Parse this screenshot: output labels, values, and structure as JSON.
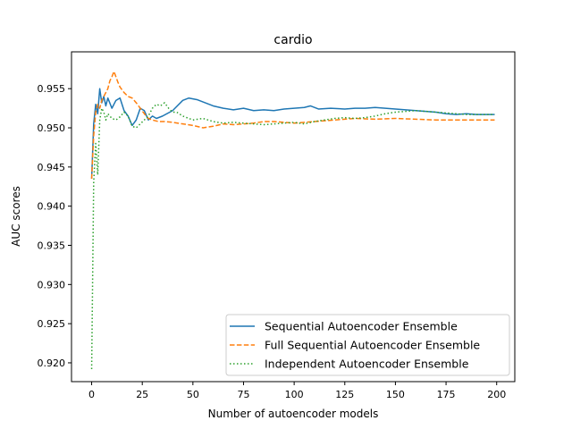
{
  "chart_data": {
    "type": "line",
    "title": "cardio",
    "xlabel": "Number of autoencoder models",
    "ylabel": "AUC scores",
    "xlim": [
      -9.95,
      208.95
    ],
    "ylim": [
      0.9176,
      0.9597
    ],
    "xticks": [
      0,
      25,
      50,
      75,
      100,
      125,
      150,
      175,
      200
    ],
    "xtick_labels": [
      "0",
      "25",
      "50",
      "75",
      "100",
      "125",
      "150",
      "175",
      "200"
    ],
    "yticks": [
      0.92,
      0.925,
      0.93,
      0.935,
      0.94,
      0.945,
      0.95,
      0.955
    ],
    "ytick_labels": [
      "0.920",
      "0.925",
      "0.930",
      "0.935",
      "0.940",
      "0.945",
      "0.950",
      "0.955"
    ],
    "grid": false,
    "legend_position": "lower-right",
    "series": [
      {
        "name": "Sequential Autoencoder Ensemble",
        "color": "#1f77b4",
        "dash": "solid",
        "x": [
          0,
          1,
          2,
          3,
          4,
          5,
          6,
          7,
          8,
          10,
          12,
          14,
          16,
          18,
          20,
          22,
          24,
          26,
          28,
          30,
          32,
          35,
          40,
          45,
          48,
          52,
          56,
          60,
          65,
          70,
          75,
          80,
          85,
          90,
          95,
          100,
          105,
          108,
          112,
          118,
          125,
          130,
          135,
          140,
          145,
          150,
          155,
          160,
          165,
          170,
          175,
          180,
          185,
          190,
          195,
          199
        ],
        "y": [
          0.9435,
          0.9505,
          0.953,
          0.9518,
          0.955,
          0.9532,
          0.954,
          0.9528,
          0.9538,
          0.9525,
          0.9535,
          0.9538,
          0.9522,
          0.9515,
          0.9503,
          0.951,
          0.9525,
          0.9522,
          0.951,
          0.9515,
          0.9512,
          0.9515,
          0.9522,
          0.9535,
          0.9538,
          0.9536,
          0.9532,
          0.9528,
          0.9525,
          0.9523,
          0.9525,
          0.9522,
          0.9523,
          0.9522,
          0.9524,
          0.9525,
          0.9526,
          0.9528,
          0.9524,
          0.9525,
          0.9524,
          0.9525,
          0.9525,
          0.9526,
          0.9525,
          0.9524,
          0.9523,
          0.9522,
          0.9521,
          0.952,
          0.9518,
          0.9517,
          0.9518,
          0.9517,
          0.9517,
          0.9517
        ]
      },
      {
        "name": "Full Sequential Autoencoder Ensemble",
        "color": "#ff7f0e",
        "dash": "dashed",
        "x": [
          0,
          1,
          2,
          3,
          4,
          5,
          6,
          7,
          8,
          9,
          10,
          11,
          12,
          13,
          14,
          16,
          18,
          20,
          22,
          24,
          26,
          28,
          30,
          33,
          36,
          40,
          45,
          50,
          55,
          60,
          65,
          70,
          75,
          80,
          85,
          90,
          95,
          100,
          110,
          120,
          130,
          140,
          150,
          160,
          170,
          180,
          190,
          199
        ],
        "y": [
          0.9435,
          0.949,
          0.952,
          0.953,
          0.9525,
          0.9535,
          0.954,
          0.9545,
          0.955,
          0.956,
          0.9565,
          0.9572,
          0.9565,
          0.9558,
          0.9552,
          0.9545,
          0.954,
          0.9538,
          0.9532,
          0.9525,
          0.9518,
          0.9512,
          0.951,
          0.9508,
          0.9508,
          0.9507,
          0.9505,
          0.9503,
          0.95,
          0.9502,
          0.9505,
          0.9504,
          0.9505,
          0.9506,
          0.9508,
          0.9508,
          0.9507,
          0.9506,
          0.9508,
          0.951,
          0.9512,
          0.9511,
          0.9512,
          0.9511,
          0.951,
          0.951,
          0.951,
          0.951
        ]
      },
      {
        "name": "Independent Autoencoder Ensemble",
        "color": "#2ca02c",
        "dash": "dotted",
        "x": [
          0,
          1,
          2,
          3,
          4,
          5,
          6,
          7,
          8,
          10,
          12,
          14,
          16,
          18,
          20,
          22,
          24,
          26,
          28,
          30,
          32,
          34,
          36,
          38,
          40,
          42,
          45,
          50,
          55,
          60,
          65,
          70,
          75,
          80,
          85,
          90,
          95,
          100,
          105,
          110,
          115,
          120,
          125,
          130,
          135,
          140,
          145,
          150,
          155,
          160,
          165,
          170,
          175,
          180,
          185,
          190,
          195,
          199
        ],
        "y": [
          0.9192,
          0.943,
          0.948,
          0.944,
          0.951,
          0.9525,
          0.952,
          0.951,
          0.9518,
          0.9512,
          0.951,
          0.9514,
          0.952,
          0.9515,
          0.9502,
          0.95,
          0.9505,
          0.951,
          0.9515,
          0.9525,
          0.953,
          0.9528,
          0.9532,
          0.9525,
          0.952,
          0.952,
          0.9515,
          0.951,
          0.9512,
          0.9508,
          0.9506,
          0.9507,
          0.9506,
          0.9505,
          0.9504,
          0.9505,
          0.9506,
          0.9507,
          0.9505,
          0.9508,
          0.951,
          0.9512,
          0.9513,
          0.9512,
          0.9513,
          0.9515,
          0.9518,
          0.952,
          0.9521,
          0.9522,
          0.9521,
          0.952,
          0.9519,
          0.9518,
          0.9517,
          0.9517,
          0.9517,
          0.9517
        ]
      }
    ]
  }
}
